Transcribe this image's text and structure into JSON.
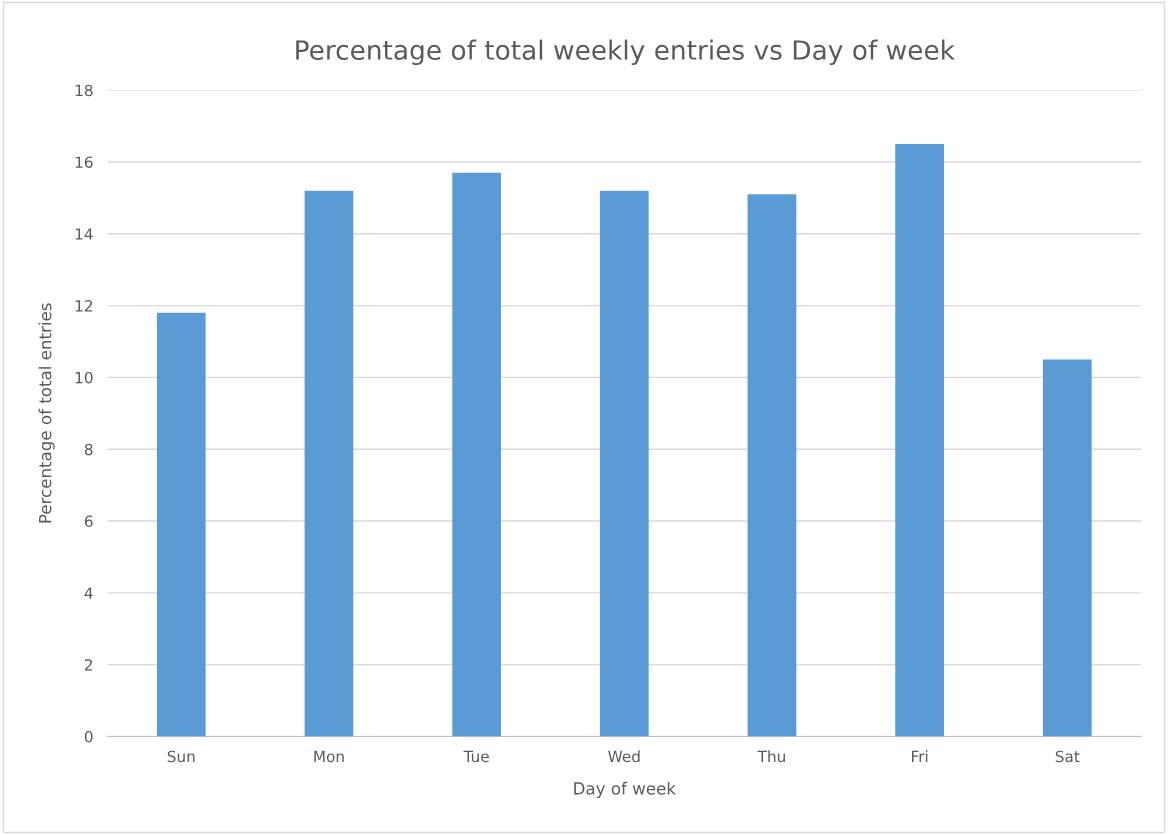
{
  "chart_data": {
    "type": "bar",
    "title": "Percentage of total weekly entries vs Day of week",
    "xlabel": "Day of week",
    "ylabel": "Percentage of total entries",
    "categories": [
      "Sun",
      "Mon",
      "Tue",
      "Wed",
      "Thu",
      "Fri",
      "Sat"
    ],
    "values": [
      11.8,
      15.2,
      15.7,
      15.2,
      15.1,
      16.5,
      10.5
    ],
    "color": "#5b9bd5",
    "ylim": [
      0,
      18
    ],
    "yticks": [
      0,
      2,
      4,
      6,
      8,
      10,
      12,
      14,
      16,
      18
    ],
    "grid": "y"
  }
}
